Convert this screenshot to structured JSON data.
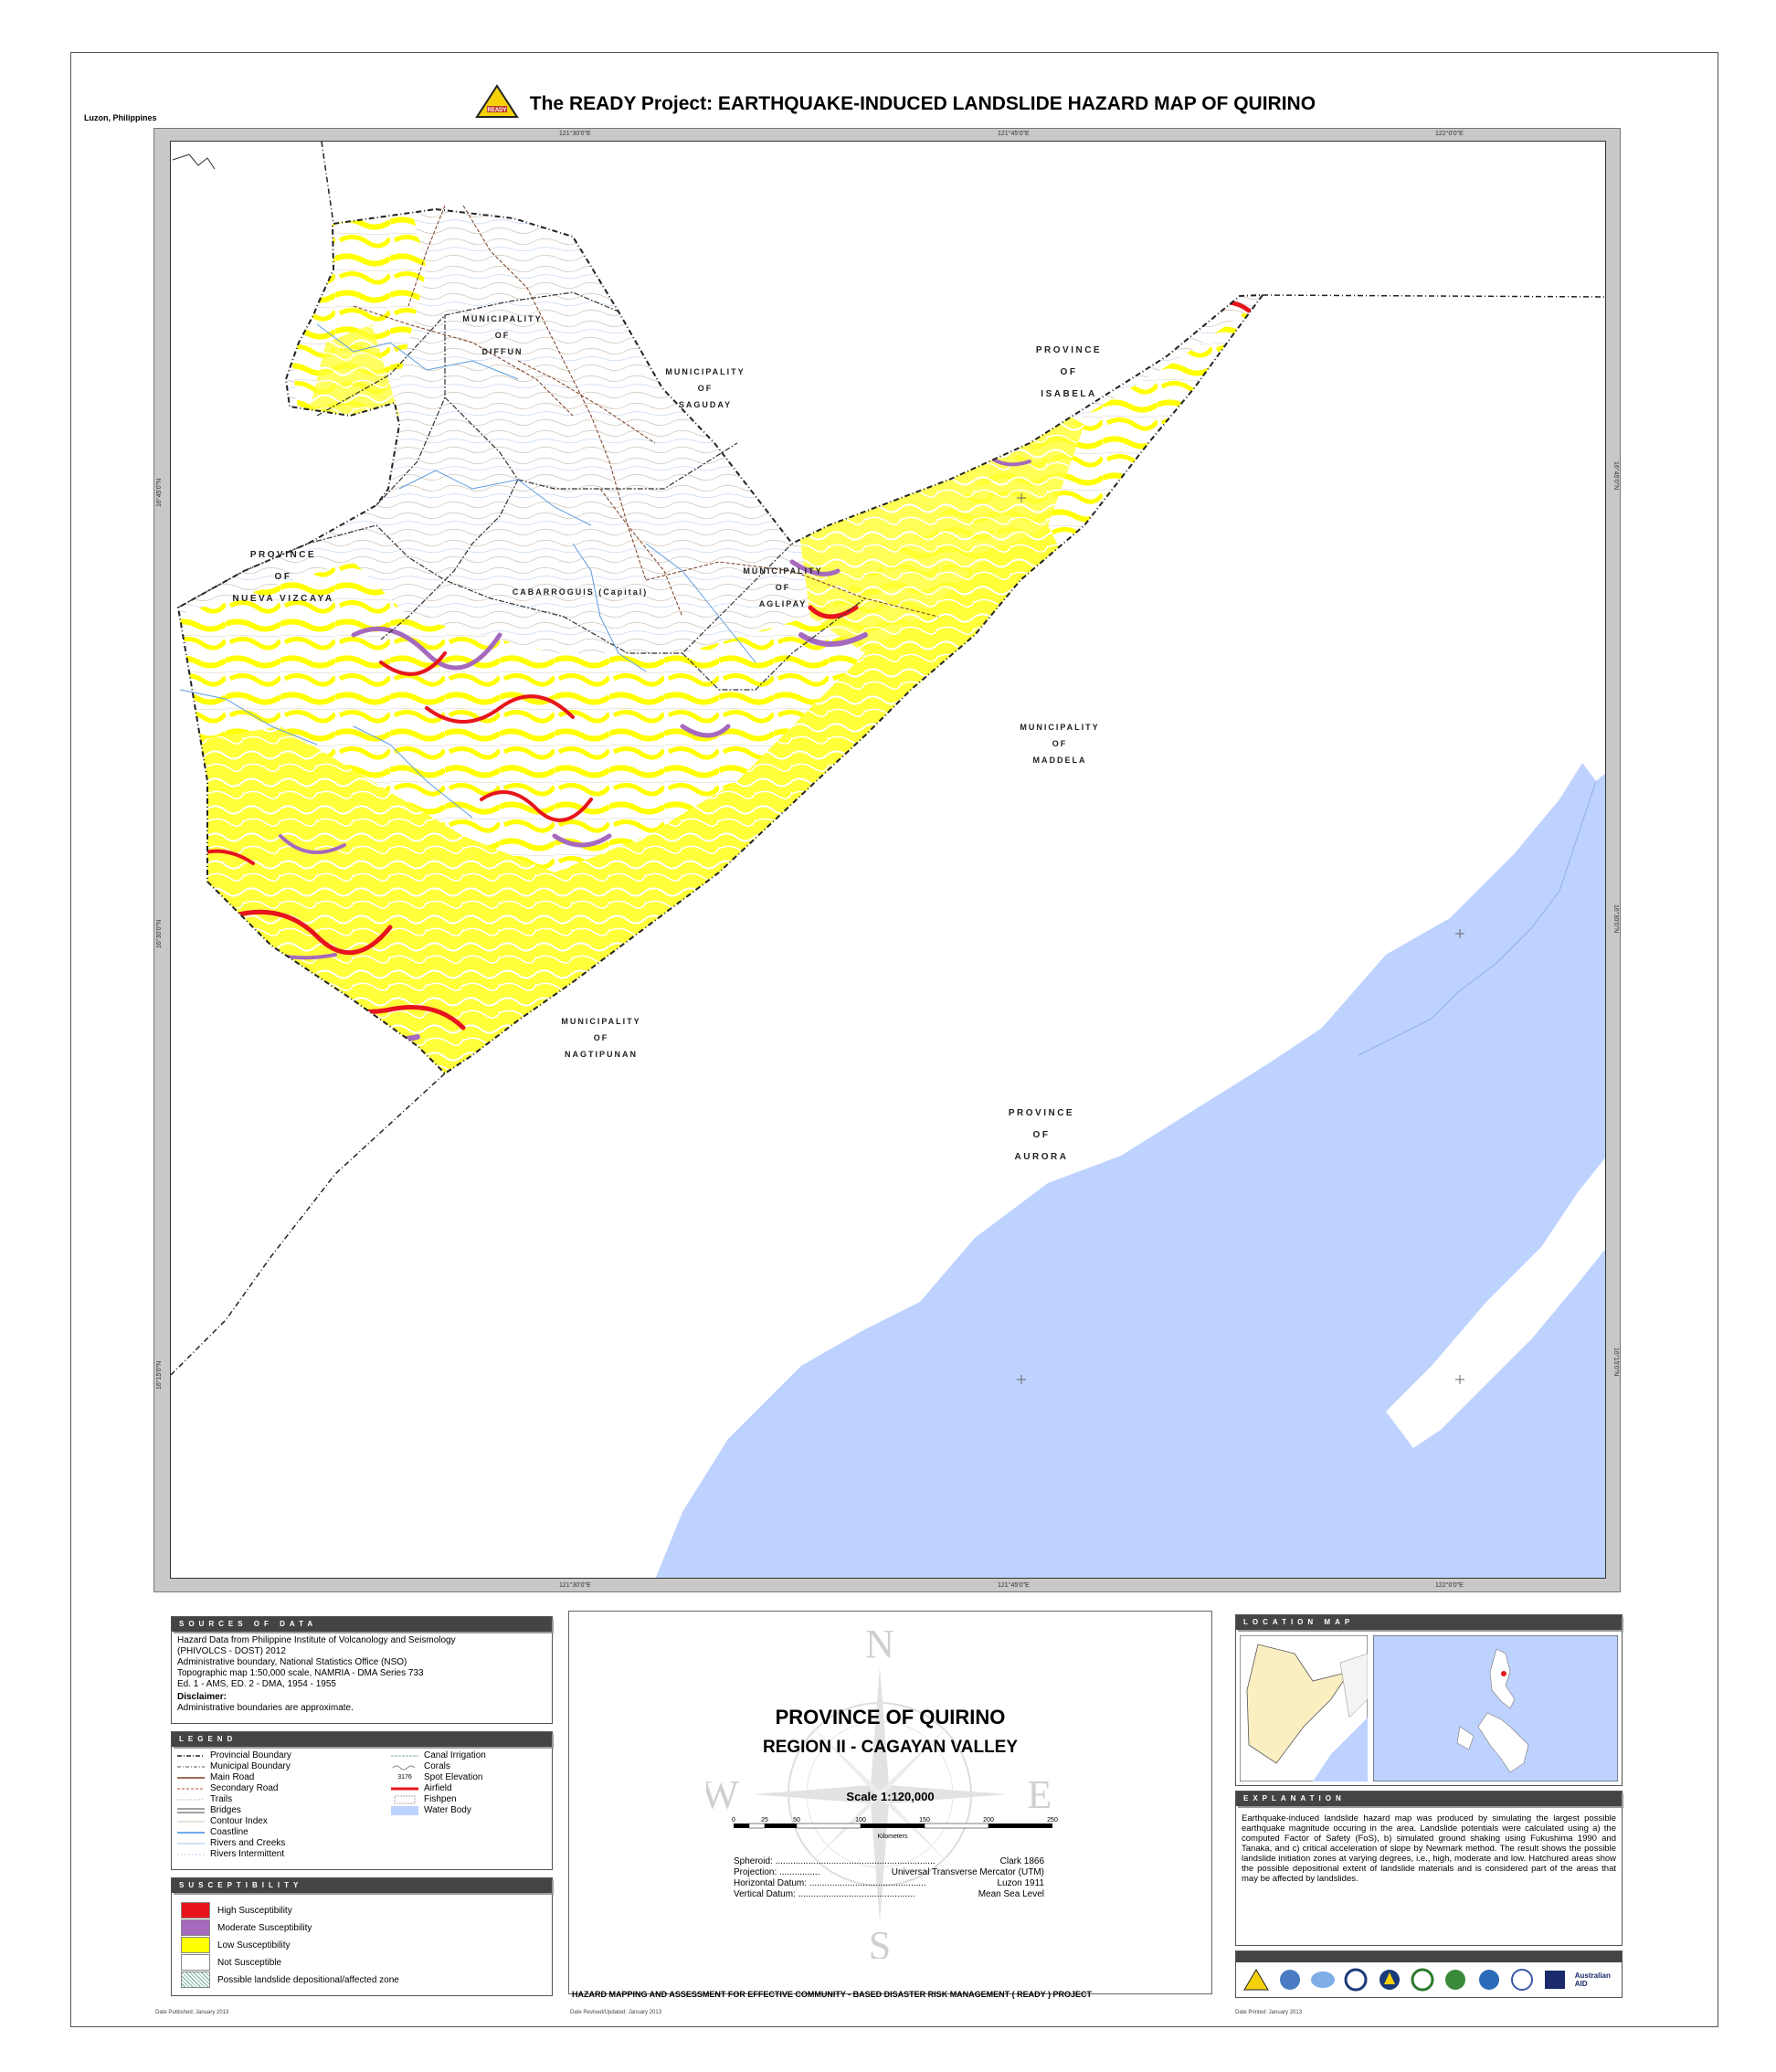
{
  "header": {
    "title": "The READY Project: EARTHQUAKE-INDUCED LANDSLIDE HAZARD MAP OF QUIRINO",
    "location": "Luzon, Philippines",
    "logo_text": "READY"
  },
  "grid_labels": {
    "top": [
      "121°30'0\"E",
      "121°45'0\"E",
      "122°0'0\"E"
    ],
    "bottom": [
      "121°30'0\"E",
      "121°45'0\"E",
      "122°0'0\"E"
    ],
    "left": [
      "16°45'0\"N",
      "16°30'0\"N",
      "16°15'0\"N"
    ],
    "right": [
      "16°45'0\"N",
      "16°30'0\"N",
      "16°15'0\"N"
    ]
  },
  "map_labels": {
    "diffun": [
      "MUNICIPALITY",
      "OF",
      "DIFFUN"
    ],
    "saguday": [
      "MUNICIPALITY",
      "OF",
      "SAGUDAY"
    ],
    "isabela": [
      "PROVINCE",
      "OF",
      "ISABELA"
    ],
    "nueva_vizcaya": [
      "PROVINCE",
      "OF",
      "NUEVA VIZCAYA"
    ],
    "cabarroguis": "CABARROGUIS (Capital)",
    "aglipay": [
      "MUNICIPALITY",
      "OF",
      "AGLIPAY"
    ],
    "maddela": [
      "MUNICIPALITY",
      "OF",
      "MADDELA"
    ],
    "nagtipunan": [
      "MUNICIPALITY",
      "OF",
      "NAGTIPUNAN"
    ],
    "aurora": [
      "PROVINCE",
      "OF",
      "AURORA"
    ]
  },
  "colors": {
    "high": "#e8141c",
    "moderate": "#a569bd",
    "low": "#ffff00",
    "not_susceptible": "#ffffff",
    "water": "#bed2ff",
    "frame": "#c8c8c8"
  },
  "sources": {
    "heading": "SOURCES OF DATA",
    "lines": [
      "Hazard Data from Philippine Institute of Volcanology and Seismology",
      "(PHIVOLCS - DOST) 2012",
      "Administrative boundary, National Statistics Office (NSO)",
      "Topographic map 1:50,000 scale,  NAMRIA - DMA Series 733",
      "Ed. 1 - AMS, ED. 2 - DMA, 1954 - 1955"
    ],
    "disclaimer_title": "Disclaimer:",
    "disclaimer_text": "Administrative boundaries are approximate."
  },
  "legend": {
    "heading": "LEGEND",
    "left_items": [
      "Provincial Boundary",
      "Municipal Boundary",
      "Main Road",
      "Secondary Road",
      "Trails",
      "Bridges",
      "Contour Index",
      "Coastline",
      "Rivers and Creeks",
      "Rivers Intermittent"
    ],
    "right_items": [
      "Canal Irrigation",
      "Corals",
      "Spot Elevation",
      "Airfield",
      "Fishpen",
      "Water Body"
    ],
    "spot_sample": "3176"
  },
  "susceptibility": {
    "heading": "SUSCEPTIBILITY",
    "items": [
      "High Susceptibility",
      "Moderate Susceptibility",
      "Low Susceptibility",
      "Not Susceptible",
      "Possible landslide depositional/affected zone"
    ]
  },
  "center": {
    "province": "PROVINCE OF QUIRINO",
    "region": "REGION II - CAGAYAN VALLEY",
    "scale": "Scale 1:120,000",
    "scale_ticks": [
      "0",
      "25",
      "50",
      "100",
      "150",
      "200",
      "250"
    ],
    "scale_unit": "Kilometers",
    "compass": [
      "N",
      "S",
      "E",
      "W"
    ],
    "spheroid_label": "Spheroid: ...............................................................",
    "spheroid_value": "Clark 1866",
    "projection_label": "Projection: ................",
    "projection_value": "Universal Transverse Mercator (UTM)",
    "hdatum_label": "Horizontal Datum: ..............................................",
    "hdatum_value": "Luzon 1911",
    "vdatum_label": "Vertical Datum: ..............................................",
    "vdatum_value": "Mean Sea Level",
    "project_footer": "HAZARD MAPPING AND ASSESSMENT FOR EFFECTIVE COMMUNITY - BASED DISASTER RISK MANAGEMENT ( READY ) PROJECT"
  },
  "location_map": {
    "heading": "LOCATION MAP"
  },
  "explanation": {
    "heading": "EXPLANATION",
    "text": "Earthquake-induced landslide hazard map was produced by simulating the largest possible earthquake magnitude occuring in the area. Landslide potentials were calculated using a) the computed Factor of Safety (FoS), b) simulated ground shaking using Fukushima 1990 and Tanaka, and c) critical acceleration of slope by Newmark method. The result shows the possible landslide initiation zones at varying degrees, i.e., high, moderate and low. Hatchured areas show the possible depositional extent of landslide materials and is considered part of the areas that may be affected by landslides."
  },
  "partners": {
    "australian_aid": "Australian AID"
  },
  "footer": {
    "published": "Date Published: January 2013",
    "revised": "Date Revised/Updated: January 2013",
    "printed": "Date Printed: January 2013"
  }
}
